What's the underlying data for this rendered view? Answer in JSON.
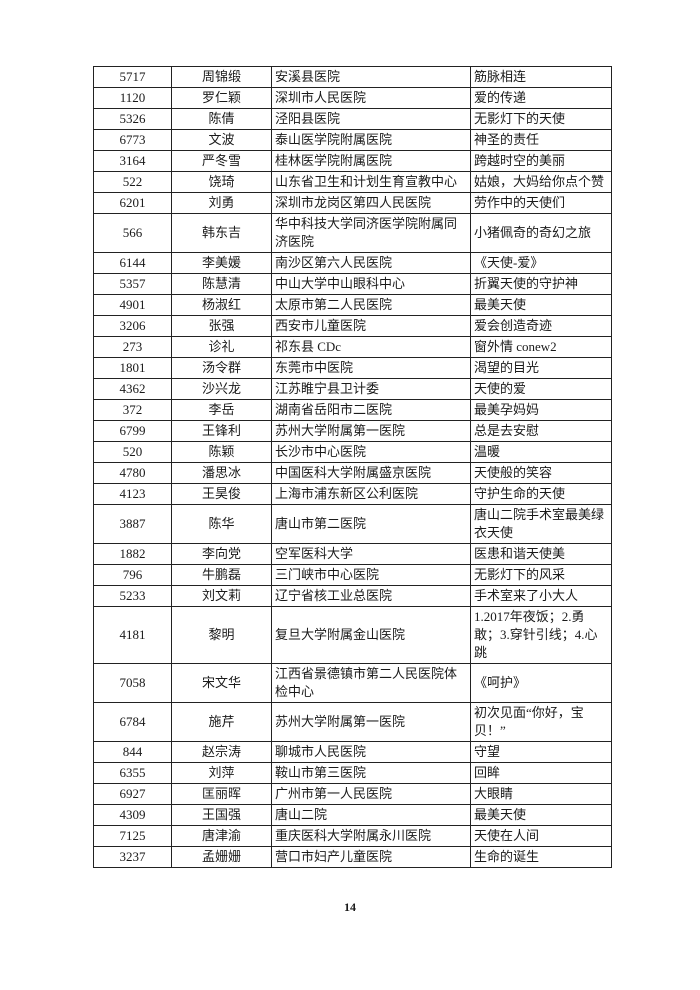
{
  "page": {
    "number": "14"
  },
  "colors": {
    "background": "#ffffff",
    "text": "#1a1a1a",
    "table_border": "#222222"
  },
  "table": {
    "rows": [
      {
        "id": "5717",
        "name": "周锦缎",
        "org": "安溪县医院",
        "title": "筋脉相连"
      },
      {
        "id": "1120",
        "name": "罗仁颖",
        "org": "深圳市人民医院",
        "title": "爱的传递"
      },
      {
        "id": "5326",
        "name": "陈倩",
        "org": "泾阳县医院",
        "title": "无影灯下的天使"
      },
      {
        "id": "6773",
        "name": "文波",
        "org": "泰山医学院附属医院",
        "title": "神圣的责任"
      },
      {
        "id": "3164",
        "name": "严冬雪",
        "org": "桂林医学院附属医院",
        "title": "跨越时空的美丽"
      },
      {
        "id": "522",
        "name": "饶琦",
        "org": "山东省卫生和计划生育宣教中心",
        "title": "姑娘，大妈给你点个赞"
      },
      {
        "id": "6201",
        "name": "刘勇",
        "org": "深圳市龙岗区第四人民医院",
        "title": "劳作中的天使们"
      },
      {
        "id": "566",
        "name": "韩东吉",
        "org": "华中科技大学同济医学院附属同济医院",
        "title": "小猪佩奇的奇幻之旅"
      },
      {
        "id": "6144",
        "name": "李美媛",
        "org": "南沙区第六人民医院",
        "title": "《天使-爱》"
      },
      {
        "id": "5357",
        "name": "陈慧清",
        "org": "中山大学中山眼科中心",
        "title": "折翼天使的守护神"
      },
      {
        "id": "4901",
        "name": "杨淑红",
        "org": "太原市第二人民医院",
        "title": "最美天使"
      },
      {
        "id": "3206",
        "name": "张强",
        "org": "西安市儿童医院",
        "title": "爱会创造奇迹"
      },
      {
        "id": "273",
        "name": "诊礼",
        "org": "祁东县 CDc",
        "title": "窗外情 conew2"
      },
      {
        "id": "1801",
        "name": "汤令群",
        "org": "东莞市中医院",
        "title": "渴望的目光"
      },
      {
        "id": "4362",
        "name": "沙兴龙",
        "org": "江苏睢宁县卫计委",
        "title": "天使的爱"
      },
      {
        "id": "372",
        "name": "李岳",
        "org": "湖南省岳阳市二医院",
        "title": "最美孕妈妈"
      },
      {
        "id": "6799",
        "name": "王锋利",
        "org": "苏州大学附属第一医院",
        "title": "总是去安慰"
      },
      {
        "id": "520",
        "name": "陈颖",
        "org": "长沙市中心医院",
        "title": "温暖"
      },
      {
        "id": "4780",
        "name": "潘思冰",
        "org": "中国医科大学附属盛京医院",
        "title": "天使般的笑容"
      },
      {
        "id": "4123",
        "name": "王昊俊",
        "org": "上海市浦东新区公利医院",
        "title": "守护生命的天使"
      },
      {
        "id": "3887",
        "name": "陈华",
        "org": "唐山市第二医院",
        "title": "唐山二院手术室最美绿衣天使"
      },
      {
        "id": "1882",
        "name": "李向党",
        "org": "空军医科大学",
        "title": "医患和谐天使美"
      },
      {
        "id": "796",
        "name": "牛鹏磊",
        "org": "三门峡市中心医院",
        "title": "无影灯下的风采"
      },
      {
        "id": "5233",
        "name": "刘文莉",
        "org": "辽宁省核工业总医院",
        "title": "手术室来了小大人"
      },
      {
        "id": "4181",
        "name": "黎明",
        "org": "复旦大学附属金山医院",
        "title": "1.2017年夜饭；2.勇敢；3.穿针引线；4.心跳"
      },
      {
        "id": "7058",
        "name": "宋文华",
        "org": "江西省景德镇市第二人民医院体检中心",
        "title": "《呵护》"
      },
      {
        "id": "6784",
        "name": "施芹",
        "org": "苏州大学附属第一医院",
        "title": "初次见面“你好，宝贝！”"
      },
      {
        "id": "844",
        "name": "赵宗涛",
        "org": "聊城市人民医院",
        "title": "守望"
      },
      {
        "id": "6355",
        "name": "刘萍",
        "org": "鞍山市第三医院",
        "title": "回眸"
      },
      {
        "id": "6927",
        "name": "匡丽晖",
        "org": "广州市第一人民医院",
        "title": "大眼睛"
      },
      {
        "id": "4309",
        "name": "王国强",
        "org": "唐山二院",
        "title": "最美天使"
      },
      {
        "id": "7125",
        "name": "唐津渝",
        "org": "重庆医科大学附属永川医院",
        "title": "天使在人间"
      },
      {
        "id": "3237",
        "name": "孟姗姗",
        "org": "营口市妇产儿童医院",
        "title": "生命的诞生"
      }
    ]
  }
}
